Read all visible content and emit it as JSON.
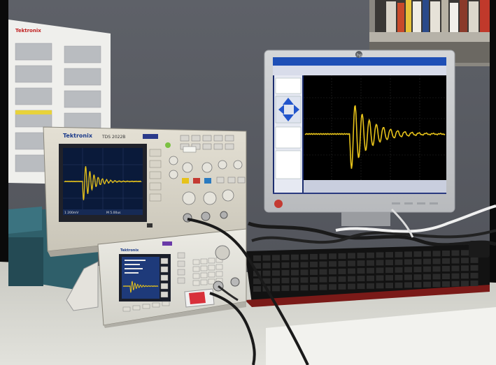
{
  "scene": {
    "description_free": true
  },
  "oscilloscope": {
    "brand": "Tektronix",
    "model": "TDS 2022B",
    "screen_readout_left": "1  200mV",
    "screen_readout_right": "M  5.00us",
    "trace_color": "#e6c21a",
    "screen_bg": "#0a1a3a"
  },
  "function_generator": {
    "brand": "Tektronix",
    "trace_color": "#e6c21a"
  },
  "monitor": {
    "brand_logo": "hp",
    "trace_color": "#e6c21a",
    "plot_bg": "#000000"
  },
  "calendar": {
    "heading": "Tektronix"
  }
}
